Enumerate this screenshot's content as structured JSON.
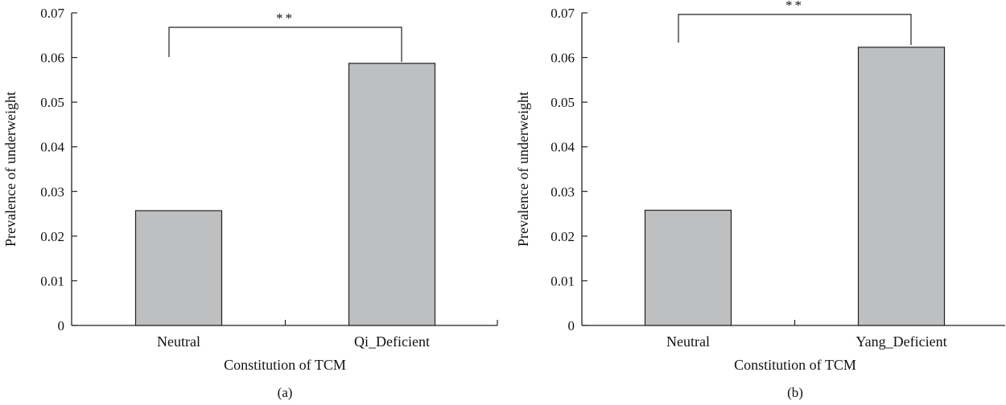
{
  "chart_data": [
    {
      "panel_label": "(a)",
      "type": "bar",
      "xlabel": "Constitution of TCM",
      "ylabel": "Prevalence of underweight",
      "categories": [
        "Neutral",
        "Qi_Deficient"
      ],
      "values": [
        0.0257,
        0.0587
      ],
      "ylim": [
        0,
        0.07
      ],
      "yticks": [
        "0",
        "0.01",
        "0.02",
        "0.03",
        "0.04",
        "0.05",
        "0.06",
        "0.07"
      ],
      "significance": {
        "between": [
          "Neutral",
          "Qi_Deficient"
        ],
        "label": "**"
      },
      "bar_color": "#bebfc1",
      "grid": false
    },
    {
      "panel_label": "(b)",
      "type": "bar",
      "xlabel": "Constitution of TCM",
      "ylabel": "Prevalence of underweight",
      "categories": [
        "Neutral",
        "Yang_Deficient"
      ],
      "values": [
        0.0258,
        0.0623
      ],
      "ylim": [
        0,
        0.07
      ],
      "yticks": [
        "0",
        "0.01",
        "0.02",
        "0.03",
        "0.04",
        "0.05",
        "0.06",
        "0.07"
      ],
      "significance": {
        "between": [
          "Neutral",
          "Yang_Deficient"
        ],
        "label": "**"
      },
      "bar_color": "#bebfc1",
      "grid": false
    }
  ]
}
